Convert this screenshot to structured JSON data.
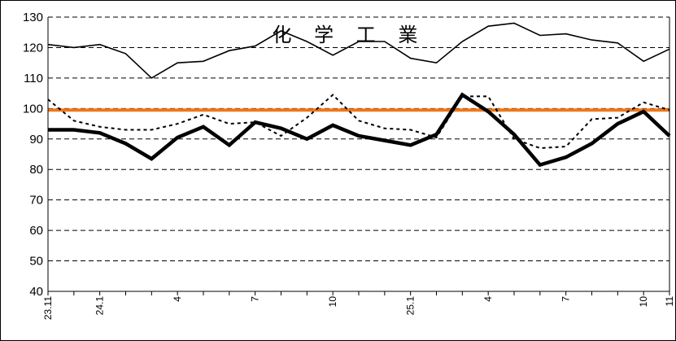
{
  "chart_data": {
    "type": "line",
    "title": "化 学 工 業",
    "ylim": [
      40,
      130
    ],
    "yticks": [
      40,
      50,
      60,
      70,
      80,
      90,
      100,
      110,
      120,
      130
    ],
    "grid": "horizontal-dashed",
    "x_tick_labels": [
      {
        "index": 0,
        "label": "23.11"
      },
      {
        "index": 2,
        "label": "24.1"
      },
      {
        "index": 5,
        "label": "4"
      },
      {
        "index": 8,
        "label": "7"
      },
      {
        "index": 11,
        "label": "10"
      },
      {
        "index": 14,
        "label": "25.1"
      },
      {
        "index": 17,
        "label": "4"
      },
      {
        "index": 20,
        "label": "7"
      },
      {
        "index": 23,
        "label": "10"
      },
      {
        "index": 24,
        "label": "11"
      }
    ],
    "reference_line": {
      "value": 99.5,
      "color": "#f07818"
    },
    "series": [
      {
        "style": "thin-solid",
        "color": "#000000",
        "values": [
          121,
          120,
          121,
          118,
          110,
          115,
          115.5,
          119,
          120.5,
          125.5,
          122,
          117.5,
          122,
          122,
          116.5,
          115,
          122,
          127,
          128,
          124,
          124.5,
          122.5,
          121.5,
          115.5,
          119.5
        ]
      },
      {
        "style": "dotted",
        "color": "#000000",
        "values": [
          103,
          96,
          94,
          93,
          93,
          95,
          98,
          95,
          95.5,
          91,
          97,
          104.5,
          96,
          93.5,
          93,
          90.5,
          104,
          104,
          90,
          87,
          87.5,
          96.5,
          97,
          102,
          99.5
        ]
      },
      {
        "style": "thick-solid",
        "color": "#000000",
        "values": [
          93,
          93,
          92,
          88.5,
          83.5,
          90.5,
          94,
          88,
          95.5,
          93.5,
          90,
          94.5,
          91,
          89.5,
          88,
          91.5,
          104.5,
          99,
          91.5,
          81.5,
          84,
          88.5,
          95,
          99,
          91
        ]
      }
    ]
  }
}
